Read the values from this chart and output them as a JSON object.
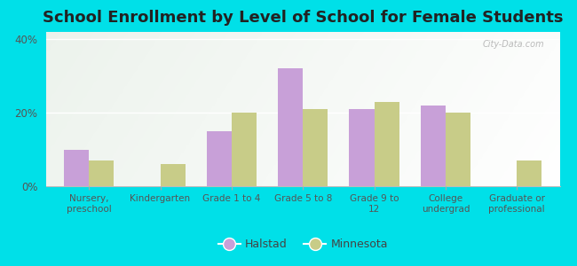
{
  "title": "School Enrollment by Level of School for Female Students",
  "categories": [
    "Nursery,\npreschool",
    "Kindergarten",
    "Grade 1 to 4",
    "Grade 5 to 8",
    "Grade 9 to\n12",
    "College\nundergrad",
    "Graduate or\nprofessional"
  ],
  "halstad": [
    10.0,
    0.0,
    15.0,
    32.0,
    21.0,
    22.0,
    0.0
  ],
  "minnesota": [
    7.0,
    6.0,
    20.0,
    21.0,
    23.0,
    20.0,
    7.0
  ],
  "halstad_color": "#c8a0d8",
  "minnesota_color": "#c8cc88",
  "background_color": "#00e0e8",
  "ylim": [
    0,
    42
  ],
  "yticks": [
    0,
    20,
    40
  ],
  "ytick_labels": [
    "0%",
    "20%",
    "40%"
  ],
  "title_fontsize": 13,
  "watermark": "City-Data.com",
  "bar_width": 0.35,
  "legend_halstad": "Halstad",
  "legend_minnesota": "Minnesota"
}
